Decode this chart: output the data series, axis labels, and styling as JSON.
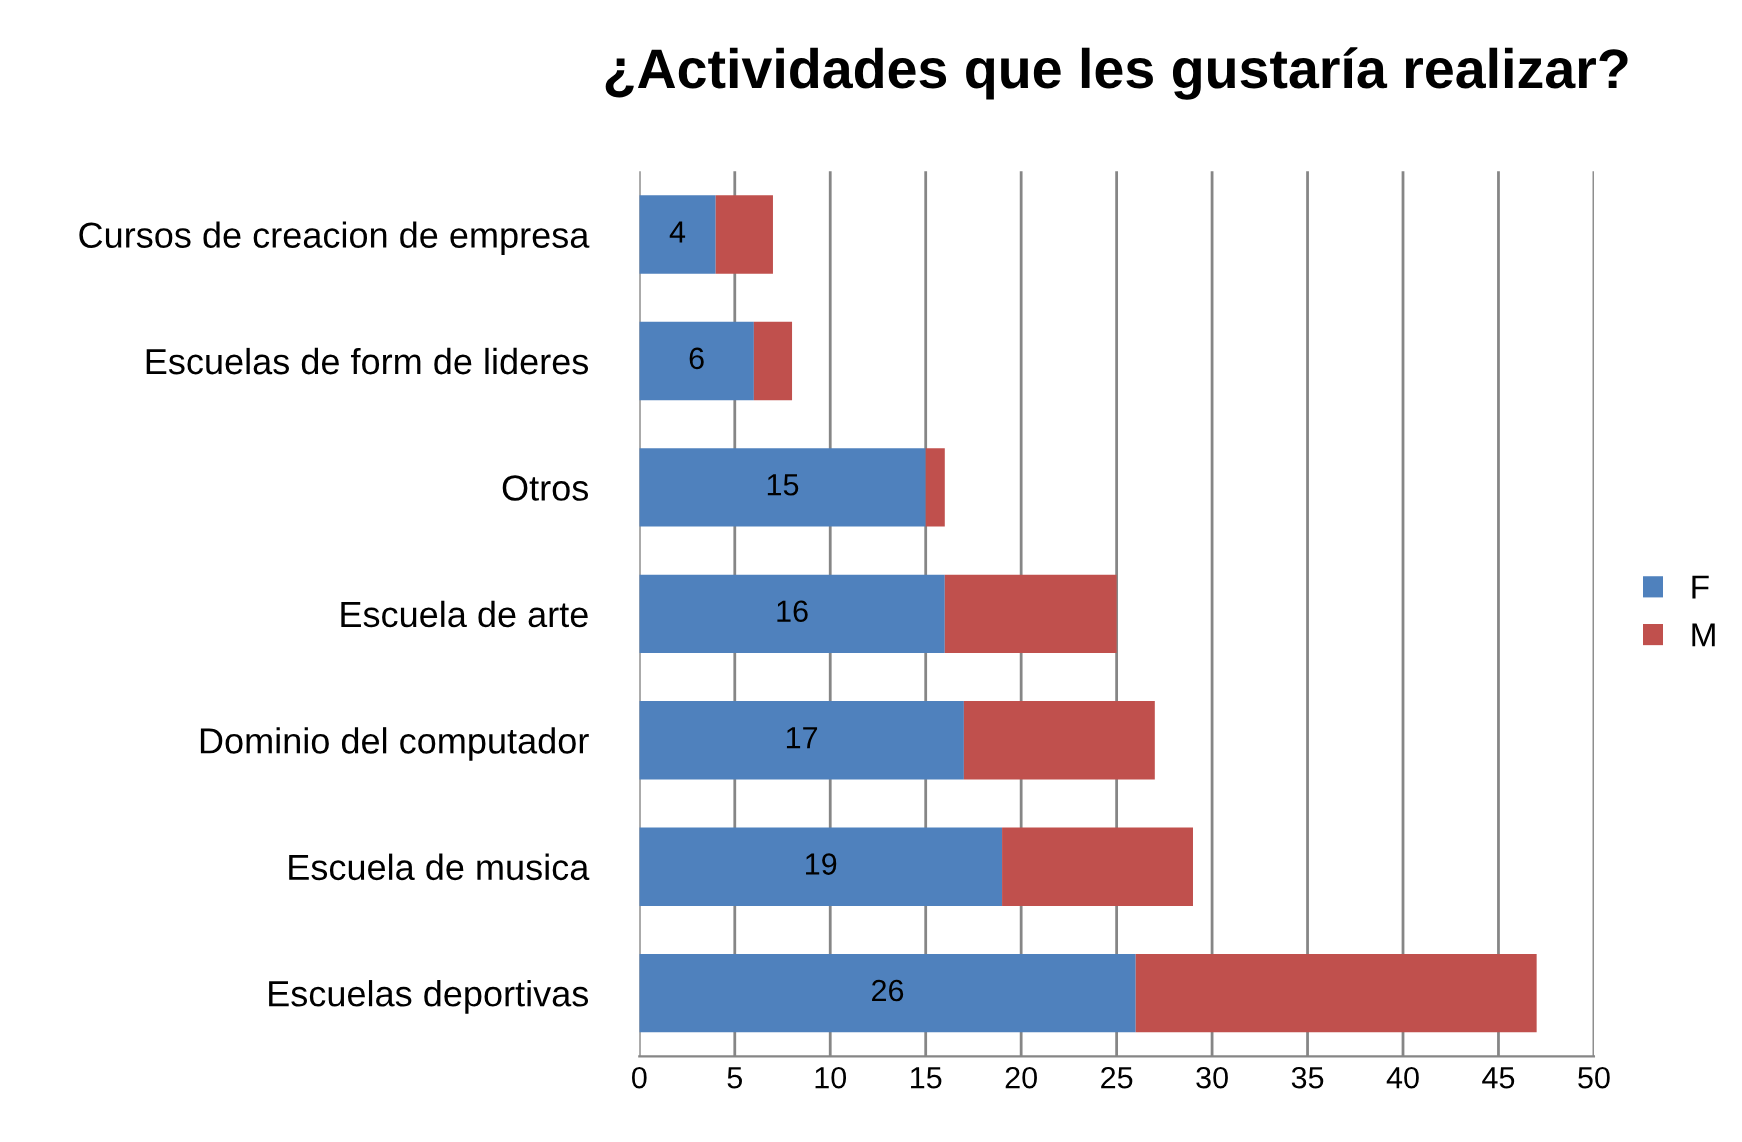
{
  "chart_data": {
    "type": "bar",
    "title": "¿Actividades que les gustaría realizar?",
    "orientation": "horizontal",
    "stacked": true,
    "categories": [
      "Cursos de creacion de empresa",
      "Escuelas de form de lideres",
      "Otros",
      "Escuela de arte",
      "Dominio del computador",
      "Escuela de musica",
      "Escuelas deportivas"
    ],
    "series": [
      {
        "name": "F",
        "color": "#4f81bd",
        "values": [
          4,
          6,
          15,
          16,
          17,
          19,
          26
        ],
        "value_labels": [
          "4",
          "6",
          "15",
          "16",
          "17",
          "19",
          "26"
        ]
      },
      {
        "name": "M",
        "color": "#c0504d",
        "values": [
          3,
          2,
          1,
          9,
          10,
          10,
          21
        ]
      }
    ],
    "xlim": [
      0,
      50
    ],
    "xticks": [
      0,
      5,
      10,
      15,
      20,
      25,
      30,
      35,
      40,
      45,
      50
    ],
    "grid": "x",
    "legend": "right"
  }
}
